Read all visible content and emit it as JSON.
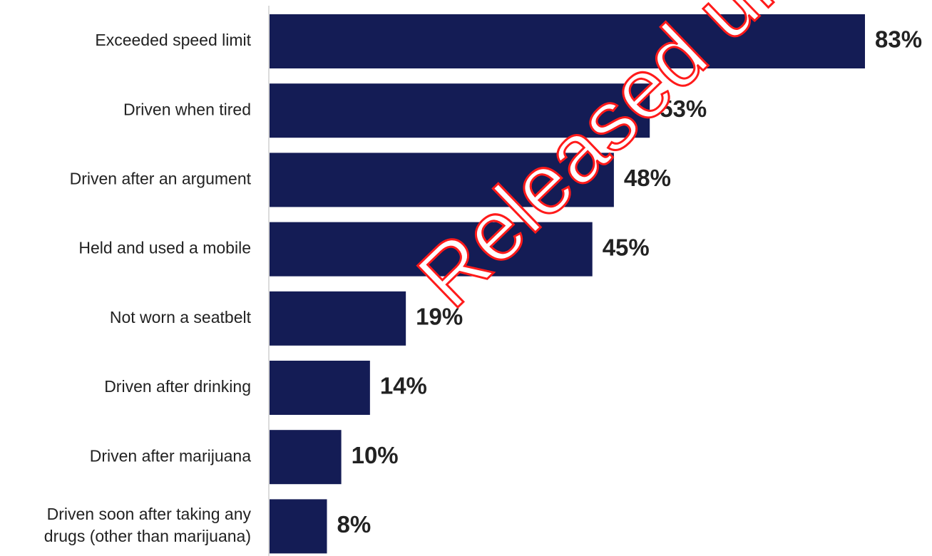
{
  "chart_data": {
    "type": "bar",
    "orientation": "horizontal",
    "categories": [
      "Exceeded speed limit",
      "Driven when tired",
      "Driven after an argument",
      "Held and used a mobile",
      "Not worn a seatbelt",
      "Driven after drinking",
      "Driven after marijuana",
      [
        "Driven soon after taking any",
        "drugs (other than marijuana)"
      ]
    ],
    "values": [
      83,
      53,
      48,
      45,
      19,
      14,
      10,
      8
    ],
    "value_labels": [
      "83%",
      "53%",
      "48%",
      "45%",
      "19%",
      "14%",
      "10%",
      "8%"
    ],
    "xlim": [
      0,
      83
    ],
    "bar_color": "#141c55",
    "axis_color": "#cfcfcf",
    "grid": false,
    "legend": false
  },
  "watermark": {
    "text": "Released under the Official Information Act",
    "color": "#ff1a1a"
  }
}
